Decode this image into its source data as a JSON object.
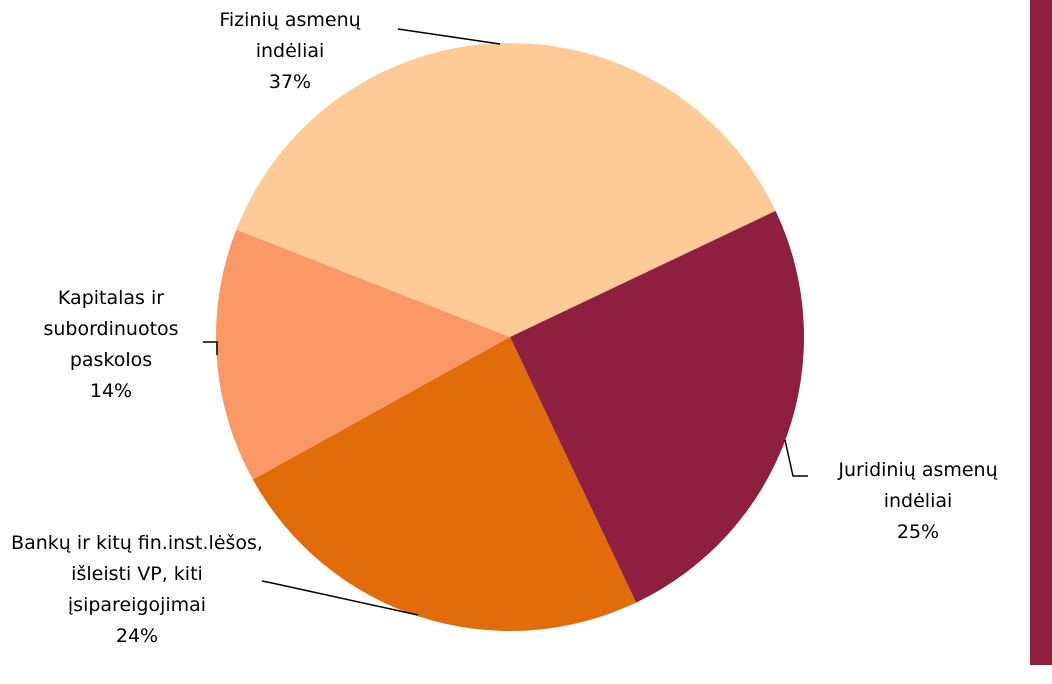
{
  "chart_data": {
    "type": "pie",
    "categories": [
      "Fizinių asmenų indėliai",
      "Juridinių asmenų indėliai",
      "Bankų ir kitų fin.inst.lėšos, išleisti VP, kiti įsipareigojimai",
      "Kapitalas ir subordinuotos paskolos"
    ],
    "values": [
      37,
      25,
      24,
      14
    ],
    "value_labels": [
      "37%",
      "25%",
      "24%",
      "14%"
    ],
    "colors": [
      "#fdca98",
      "#8e1f40",
      "#e36c0a",
      "#fa9966"
    ]
  }
}
